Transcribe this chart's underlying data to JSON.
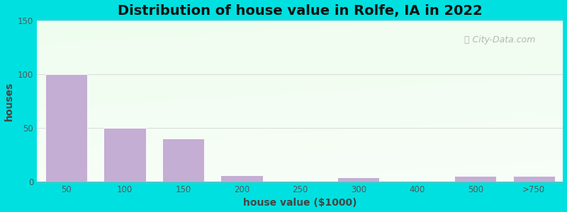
{
  "title": "Distribution of house value in Rolfe, IA in 2022",
  "xlabel": "house value ($1000)",
  "ylabel": "houses",
  "categories": [
    "50",
    "100",
    "150",
    "200",
    "250",
    "300",
    "400",
    "500",
    ">750"
  ],
  "bar_lefts": [
    0,
    1,
    2,
    3,
    4,
    5,
    6,
    7,
    8
  ],
  "values": [
    100,
    50,
    40,
    6,
    0,
    4,
    0,
    5,
    5
  ],
  "bar_color": "#c4aed4",
  "bar_edge_color": "#ffffff",
  "ylim": [
    0,
    150
  ],
  "yticks": [
    0,
    50,
    100,
    150
  ],
  "background_outer": "#00e0e0",
  "title_fontsize": 14,
  "axis_label_fontsize": 10,
  "watermark_text": "City-Data.com",
  "watermark_color": "#aaaaaa",
  "grid_color": "#dddddd",
  "tick_label_color": "#555555",
  "spine_color": "#aaaaaa"
}
